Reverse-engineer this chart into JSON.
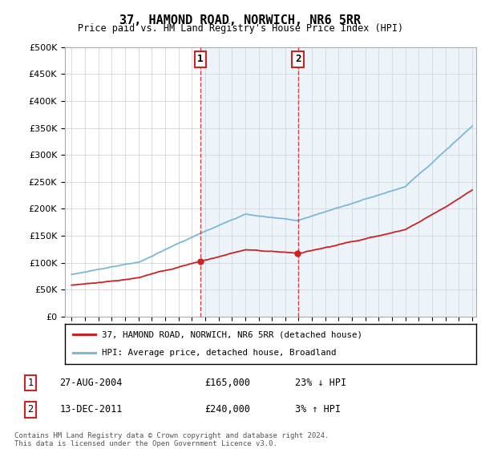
{
  "title": "37, HAMOND ROAD, NORWICH, NR6 5RR",
  "subtitle": "Price paid vs. HM Land Registry's House Price Index (HPI)",
  "hpi_label": "HPI: Average price, detached house, Broadland",
  "property_label": "37, HAMOND ROAD, NORWICH, NR6 5RR (detached house)",
  "annotation1_label": "1",
  "annotation1_date": "27-AUG-2004",
  "annotation1_price": "£165,000",
  "annotation1_hpi": "23% ↓ HPI",
  "annotation2_label": "2",
  "annotation2_date": "13-DEC-2011",
  "annotation2_price": "£240,000",
  "annotation2_hpi": "3% ↑ HPI",
  "footer": "Contains HM Land Registry data © Crown copyright and database right 2024.\nThis data is licensed under the Open Government Licence v3.0.",
  "hpi_color": "#7ab8d9",
  "property_color": "#cc2222",
  "annotation_color": "#cc2222",
  "shaded_color": "#cce0f0",
  "ylim": [
    0,
    500000
  ],
  "yticks": [
    0,
    50000,
    100000,
    150000,
    200000,
    250000,
    300000,
    350000,
    400000,
    450000,
    500000
  ],
  "x_start_year": 1995,
  "x_end_year": 2025,
  "sale1_year": 2004.65,
  "sale1_price": 165000,
  "sale2_year": 2011.95,
  "sale2_price": 240000
}
